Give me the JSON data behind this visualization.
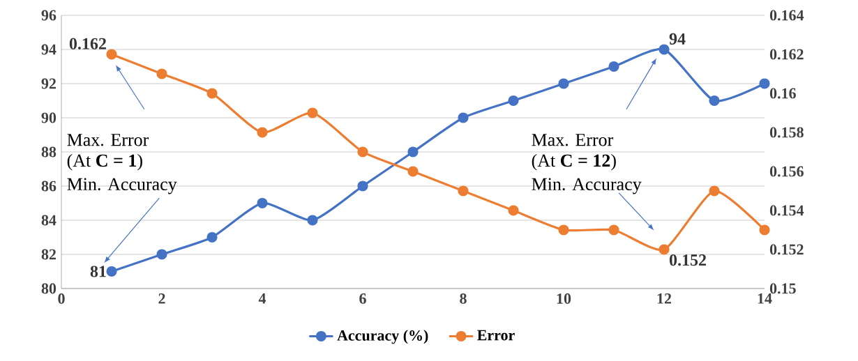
{
  "chart_data": {
    "type": "line",
    "x": [
      1,
      2,
      3,
      4,
      5,
      6,
      7,
      8,
      9,
      10,
      11,
      12,
      13,
      14
    ],
    "series": [
      {
        "name": "Accuracy (%)",
        "color": "#4472c4",
        "values": [
          81,
          82,
          83,
          85,
          84,
          86,
          88,
          90,
          91,
          92,
          93,
          94,
          91,
          92
        ],
        "value_labels": [
          "81",
          null,
          null,
          null,
          null,
          null,
          null,
          null,
          null,
          null,
          null,
          "94",
          null,
          null
        ]
      },
      {
        "name": "Error",
        "color": "#ed7d31",
        "axis": "y2",
        "values": [
          0.162,
          0.161,
          0.16,
          0.158,
          0.159,
          0.157,
          0.156,
          0.155,
          0.154,
          0.153,
          0.153,
          0.152,
          0.155,
          0.153
        ],
        "value_labels": [
          "0.162",
          null,
          null,
          null,
          null,
          null,
          null,
          null,
          null,
          null,
          null,
          "0.152",
          null,
          null
        ]
      }
    ],
    "xlim": [
      0,
      14
    ],
    "xticks": [
      0,
      2,
      4,
      6,
      8,
      10,
      12,
      14
    ],
    "ylim": [
      80,
      96
    ],
    "yticks": [
      80,
      82,
      84,
      86,
      88,
      90,
      92,
      94,
      96
    ],
    "y2lim": [
      0.15,
      0.164
    ],
    "y2ticks": [
      0.15,
      0.152,
      0.154,
      0.156,
      0.158,
      0.16,
      0.162,
      0.164
    ],
    "annotations": [
      "Max. Error",
      "(At **C = 1**)",
      "Min. Accuracy",
      "Max. Error",
      "(At **C = 12**)",
      "Min. Accuracy"
    ],
    "grid": "y",
    "legend": "bottom",
    "marker": "circle",
    "line_style": "solid"
  }
}
